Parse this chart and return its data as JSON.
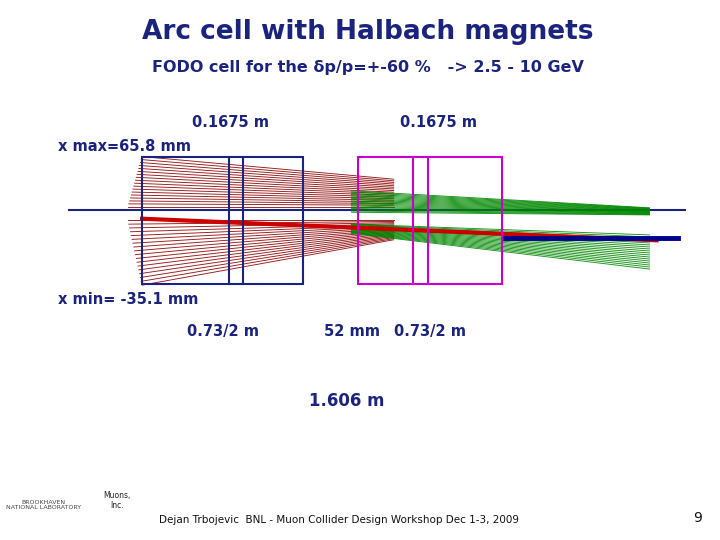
{
  "title": "Arc cell with Halbach magnets",
  "subtitle": "FODO cell for the δp/p=+-60 %   -> 2.5 - 10 GeV",
  "title_color": "#1a237e",
  "subtitle_color": "#1a237e",
  "bg_color": "#ffffff",
  "label_xmax": "x max=65.8 mm",
  "label_xmin": "x min= -35.1 mm",
  "label_01675_left": "0.1675 m",
  "label_01675_right": "0.1675 m",
  "label_0732_left": "0.73/2 m",
  "label_52mm": "52 mm",
  "label_0732_right": "0.73/2 m",
  "label_1606": "1.606 m",
  "footer": "Dejan Trbojevic  BNL - Muon Collider Design Workshop Dec 1-3, 2009",
  "page_num": "9",
  "dark_blue": "#1a237e",
  "red_beam": "#cc0000",
  "dark_red": "#8b0000",
  "green": "#008800",
  "magenta": "#cc00cc",
  "navy": "#00008b"
}
